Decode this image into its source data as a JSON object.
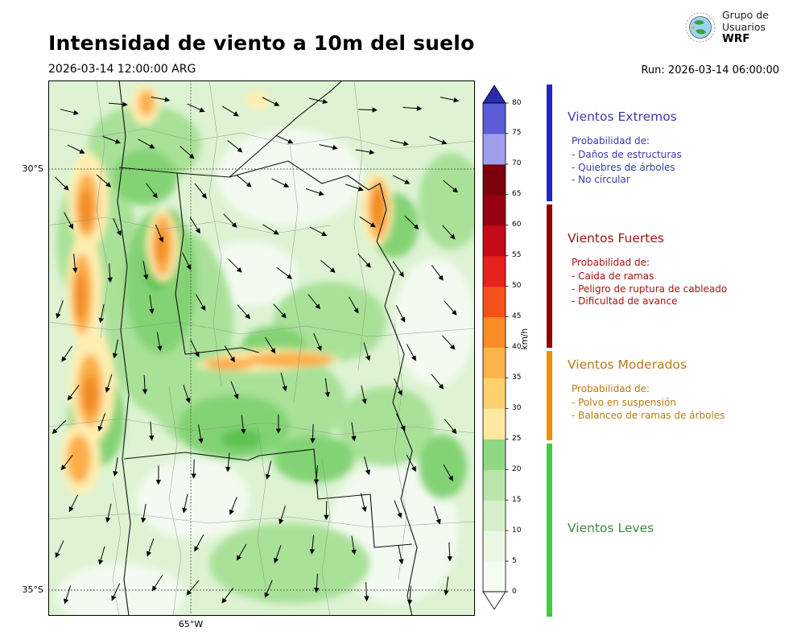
{
  "header": {
    "title": "Intensidad de viento a 10m del suelo",
    "datetime": "2026-03-14 12:00:00 ARG",
    "run": "Run: 2026-03-14 06:00:00"
  },
  "logo": {
    "org_line1": "Grupo de",
    "org_line2": "Usuarios",
    "org_line3": "WRF"
  },
  "map": {
    "lat_labels": [
      {
        "text": "30°S"
      },
      {
        "text": "35°S"
      }
    ],
    "lon_label": "65°W"
  },
  "colorbar": {
    "unit": "km/h",
    "tick_min": 0,
    "tick_max": 80,
    "ticks": [
      0,
      5,
      10,
      15,
      20,
      25,
      30,
      35,
      40,
      45,
      50,
      55,
      60,
      65,
      70,
      75,
      80
    ],
    "segment_colors_low_to_high": [
      "#f7fcf3",
      "#e9f7e3",
      "#d4efc9",
      "#b9e5ab",
      "#90d882",
      "#ffe9a0",
      "#fed16e",
      "#fdb44b",
      "#fb8c26",
      "#f5511d",
      "#e6211e",
      "#c40b18",
      "#960013",
      "#7a000c",
      "#9e9ee9",
      "#5c5cd6"
    ],
    "over_color": "#2a2ab0",
    "under_color": "#ffffff"
  },
  "legend": {
    "sections": [
      {
        "title": "Vientos Extremos",
        "color": "#3a3aae",
        "accent_color": "#2323cd",
        "prob_label": "Probabilidad de:",
        "items": [
          "- Daños de estructuras",
          "- Quiebres de árboles",
          "- No circular"
        ]
      },
      {
        "title": "Vientos Fuertes",
        "color": "#a31414",
        "accent_color": "#8e0000",
        "prob_label": "Probabilidad de:",
        "items": [
          "- Caida de ramas",
          "- Peligro de ruptura de cableado",
          "- Dificultad de avance"
        ]
      },
      {
        "title": "Vientos Moderados",
        "color": "#b97a14",
        "accent_color": "#ef8f00",
        "prob_label": "Probabilidad de:",
        "items": [
          "- Polvo en suspensión",
          "- Balanceo de ramas de árboles"
        ]
      },
      {
        "title": "Vientos Leves",
        "color": "#3d8b3d",
        "accent_color": "#44c944",
        "prob_label": "",
        "items": []
      }
    ]
  }
}
